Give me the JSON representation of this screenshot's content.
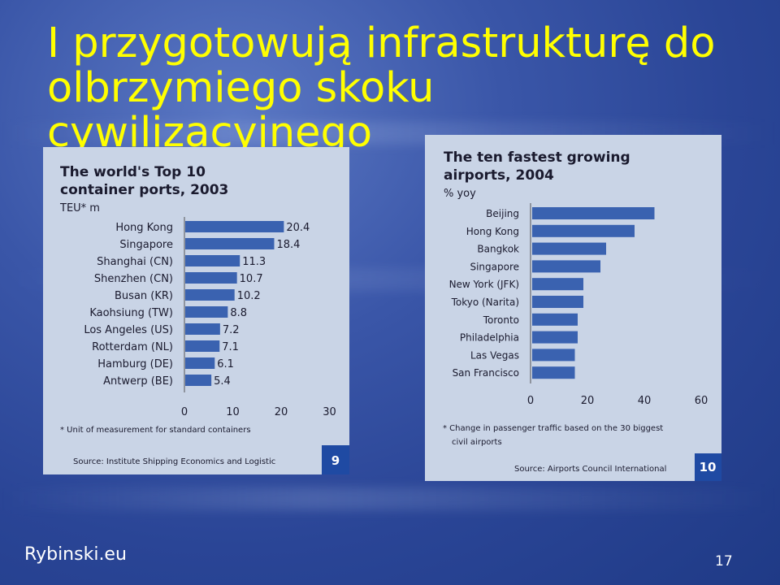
{
  "slide": {
    "title_line1": "I przygotowują infrastrukturę do",
    "title_line2": "olbrzymiego skoku cywilizacyjnego",
    "footer_left": "Rybinski.eu",
    "page_number": "17",
    "colors": {
      "title": "#ffff00",
      "bar": "#3a62b0",
      "panel": "#c9d4e6",
      "badge": "#1f4aa3"
    }
  },
  "chart_data": [
    {
      "type": "bar",
      "orientation": "horizontal",
      "title": "The world's Top 10 container ports, 2003",
      "title_line1": "The world's Top 10",
      "title_line2": "container ports, 2003",
      "subtitle": "TEU* m",
      "categories": [
        "Hong Kong",
        "Singapore",
        "Shanghai (CN)",
        "Shenzhen (CN)",
        "Busan (KR)",
        "Kaohsiung (TW)",
        "Los Angeles (US)",
        "Rotterdam (NL)",
        "Hamburg (DE)",
        "Antwerp (BE)"
      ],
      "values": [
        20.4,
        18.4,
        11.3,
        10.7,
        10.2,
        8.8,
        7.2,
        7.1,
        6.1,
        5.4
      ],
      "value_labels": [
        "20.4",
        "18.4",
        "11.3",
        "10.7",
        "10.2",
        "8.8",
        "7.2",
        "7.1",
        "6.1",
        "5.4"
      ],
      "xlim": [
        0,
        30
      ],
      "xticks": [
        "0",
        "10",
        "20",
        "30"
      ],
      "footnote": "* Unit of measurement for standard containers",
      "source": "Source: Institute Shipping Economics and Logistic",
      "badge": "9"
    },
    {
      "type": "bar",
      "orientation": "horizontal",
      "title": "The ten fastest growing airports, 2004",
      "title_line1": "The ten fastest growing",
      "title_line2": "airports, 2004",
      "subtitle": "% yoy",
      "categories": [
        "Beijing",
        "Hong Kong",
        "Bangkok",
        "Singapore",
        "New York (JFK)",
        "Tokyo (Narita)",
        "Toronto",
        "Philadelphia",
        "Las Vegas",
        "San Francisco"
      ],
      "values": [
        43,
        36,
        26,
        24,
        18,
        18,
        16,
        16,
        15,
        15
      ],
      "xlim": [
        0,
        60
      ],
      "xticks": [
        "0",
        "20",
        "40",
        "60"
      ],
      "footnote_line1": "* Change in passenger traffic based on the 30 biggest",
      "footnote_line2": "civil airports",
      "source": "Source: Airports Council International",
      "badge": "10"
    }
  ]
}
